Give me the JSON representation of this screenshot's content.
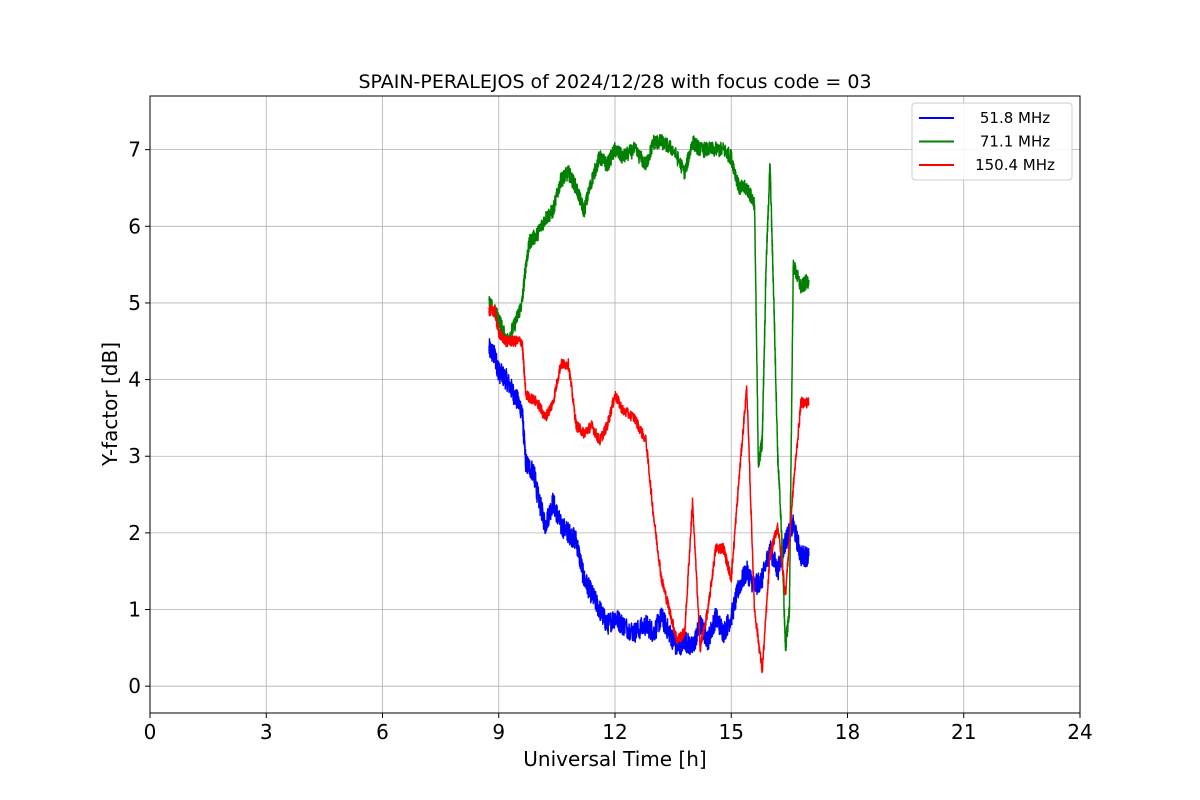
{
  "chart_data": {
    "type": "line",
    "title": "SPAIN-PERALEJOS of 2024/12/28 with focus code = 03",
    "xlabel": "Universal Time [h]",
    "ylabel": "Y-factor [dB]",
    "xlim": [
      0,
      24
    ],
    "ylim": [
      -0.35,
      7.7
    ],
    "xticks": [
      0,
      3,
      6,
      9,
      12,
      15,
      18,
      21,
      24
    ],
    "xtick_labels": [
      "0",
      "3",
      "6",
      "9",
      "12",
      "15",
      "18",
      "21",
      "24"
    ],
    "yticks": [
      0,
      1,
      2,
      3,
      4,
      5,
      6,
      7
    ],
    "ytick_labels": [
      "0",
      "1",
      "2",
      "3",
      "4",
      "5",
      "6",
      "7"
    ],
    "grid": true,
    "legend_position": "top-right",
    "series": [
      {
        "name": " 51.8 MHz",
        "color": "#0000ff",
        "noise": 0.28,
        "x": [
          8.75,
          8.9,
          9.0,
          9.2,
          9.4,
          9.6,
          9.7,
          9.9,
          10.0,
          10.2,
          10.4,
          10.6,
          10.8,
          11.0,
          11.2,
          11.4,
          11.6,
          11.8,
          12.0,
          12.2,
          12.5,
          12.8,
          13.0,
          13.2,
          13.4,
          13.6,
          13.8,
          14.0,
          14.2,
          14.4,
          14.6,
          14.8,
          15.0,
          15.2,
          15.4,
          15.6,
          15.8,
          16.0,
          16.2,
          16.4,
          16.6,
          16.8,
          17.0
        ],
        "y": [
          4.4,
          4.3,
          4.1,
          4.0,
          3.8,
          3.6,
          2.9,
          2.8,
          2.5,
          2.1,
          2.4,
          2.1,
          2.0,
          1.9,
          1.4,
          1.2,
          1.0,
          0.8,
          0.9,
          0.8,
          0.7,
          0.8,
          0.7,
          0.9,
          0.7,
          0.5,
          0.6,
          0.5,
          0.8,
          0.6,
          0.9,
          0.7,
          0.9,
          1.3,
          1.5,
          1.3,
          1.4,
          1.8,
          1.5,
          1.9,
          2.1,
          1.7,
          1.7
        ]
      },
      {
        "name": " 71.1 MHz",
        "color": "#008000",
        "noise": 0.2,
        "x": [
          8.75,
          9.0,
          9.2,
          9.4,
          9.6,
          9.7,
          9.8,
          10.0,
          10.2,
          10.4,
          10.6,
          10.8,
          11.0,
          11.2,
          11.4,
          11.6,
          11.8,
          12.0,
          12.2,
          12.5,
          12.8,
          13.0,
          13.2,
          13.5,
          13.8,
          14.0,
          14.2,
          14.5,
          14.8,
          15.0,
          15.2,
          15.4,
          15.6,
          15.7,
          15.8,
          15.9,
          16.0,
          16.1,
          16.2,
          16.3,
          16.4,
          16.5,
          16.6,
          16.8,
          17.0
        ],
        "y": [
          5.0,
          4.8,
          4.5,
          4.7,
          5.0,
          5.5,
          5.8,
          5.9,
          6.1,
          6.2,
          6.6,
          6.7,
          6.5,
          6.2,
          6.6,
          6.9,
          6.8,
          7.0,
          6.9,
          7.0,
          6.8,
          7.1,
          7.1,
          7.0,
          6.7,
          7.1,
          7.0,
          7.0,
          7.0,
          6.9,
          6.5,
          6.5,
          6.3,
          2.9,
          3.2,
          5.5,
          6.8,
          5.0,
          3.0,
          2.0,
          0.5,
          1.0,
          5.5,
          5.2,
          5.3
        ]
      },
      {
        "name": " 150.4 MHz",
        "color": "#ff0000",
        "noise": 0.14,
        "x": [
          8.75,
          8.9,
          9.0,
          9.2,
          9.4,
          9.6,
          9.7,
          10.0,
          10.2,
          10.4,
          10.6,
          10.8,
          11.0,
          11.2,
          11.4,
          11.6,
          11.8,
          12.0,
          12.2,
          12.5,
          12.8,
          13.0,
          13.2,
          13.4,
          13.6,
          13.8,
          14.0,
          14.2,
          14.4,
          14.6,
          14.8,
          15.0,
          15.2,
          15.4,
          15.6,
          15.8,
          16.0,
          16.2,
          16.4,
          16.6,
          16.8,
          17.0
        ],
        "y": [
          4.9,
          4.9,
          4.6,
          4.5,
          4.5,
          4.5,
          3.8,
          3.7,
          3.5,
          3.7,
          4.2,
          4.2,
          3.4,
          3.3,
          3.4,
          3.2,
          3.4,
          3.8,
          3.6,
          3.5,
          3.2,
          2.2,
          1.4,
          1.0,
          0.6,
          0.7,
          2.4,
          0.5,
          1.0,
          1.8,
          1.8,
          1.4,
          2.7,
          3.9,
          1.0,
          0.2,
          1.7,
          2.1,
          1.2,
          2.6,
          3.7,
          3.7
        ]
      }
    ]
  }
}
